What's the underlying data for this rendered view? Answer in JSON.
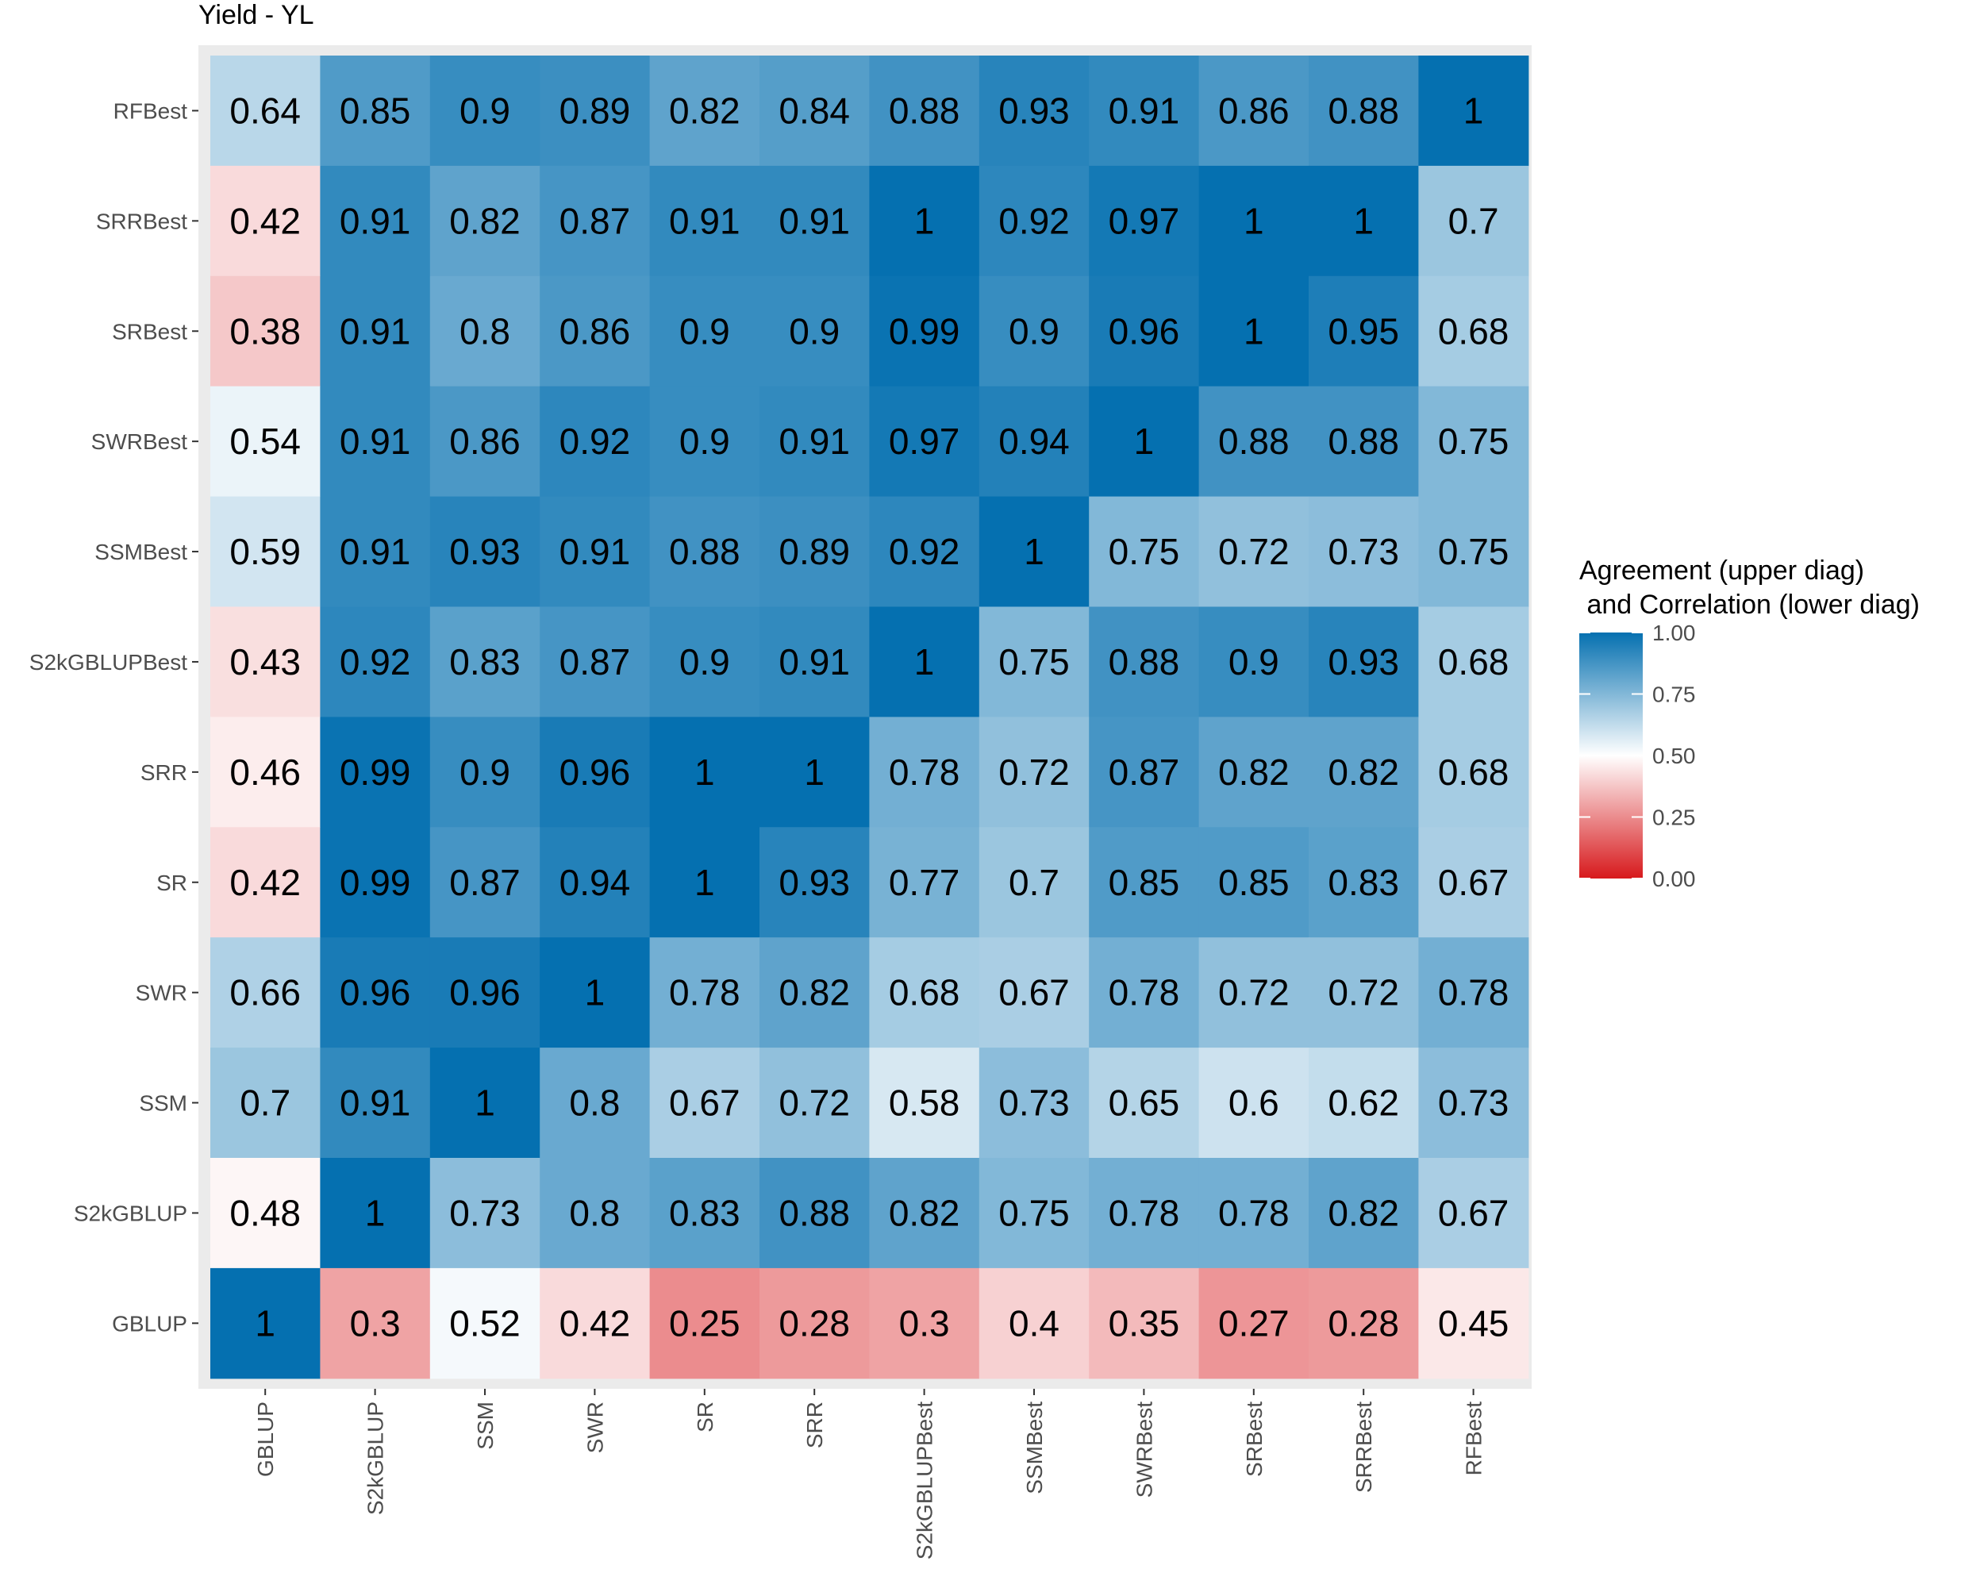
{
  "chart_data": {
    "type": "heatmap",
    "title": "Yield - YL",
    "x_categories": [
      "GBLUP",
      "S2kGBLUP",
      "SSM",
      "SWR",
      "SR",
      "SRR",
      "S2kGBLUPBest",
      "SSMBest",
      "SWRBest",
      "SRBest",
      "SRRBest",
      "RFBest"
    ],
    "y_categories_top_to_bottom": [
      "RFBest",
      "SRRBest",
      "SRBest",
      "SWRBest",
      "SSMBest",
      "S2kGBLUPBest",
      "SRR",
      "SR",
      "SWR",
      "SSM",
      "S2kGBLUP",
      "GBLUP"
    ],
    "values": [
      [
        0.64,
        0.85,
        0.9,
        0.89,
        0.82,
        0.84,
        0.88,
        0.93,
        0.91,
        0.86,
        0.88,
        1
      ],
      [
        0.42,
        0.91,
        0.82,
        0.87,
        0.91,
        0.91,
        1,
        0.92,
        0.97,
        1,
        1,
        0.7
      ],
      [
        0.38,
        0.91,
        0.8,
        0.86,
        0.9,
        0.9,
        0.99,
        0.9,
        0.96,
        1,
        0.95,
        0.68
      ],
      [
        0.54,
        0.91,
        0.86,
        0.92,
        0.9,
        0.91,
        0.97,
        0.94,
        1,
        0.88,
        0.88,
        0.75
      ],
      [
        0.59,
        0.91,
        0.93,
        0.91,
        0.88,
        0.89,
        0.92,
        1,
        0.75,
        0.72,
        0.73,
        0.75
      ],
      [
        0.43,
        0.92,
        0.83,
        0.87,
        0.9,
        0.91,
        1,
        0.75,
        0.88,
        0.9,
        0.93,
        0.68
      ],
      [
        0.46,
        0.99,
        0.9,
        0.96,
        1,
        1,
        0.78,
        0.72,
        0.87,
        0.82,
        0.82,
        0.68
      ],
      [
        0.42,
        0.99,
        0.87,
        0.94,
        1,
        0.93,
        0.77,
        0.7,
        0.85,
        0.85,
        0.83,
        0.67
      ],
      [
        0.66,
        0.96,
        0.96,
        1,
        0.78,
        0.82,
        0.68,
        0.67,
        0.78,
        0.72,
        0.72,
        0.78
      ],
      [
        0.7,
        0.91,
        1,
        0.8,
        0.67,
        0.72,
        0.58,
        0.73,
        0.65,
        0.6,
        0.62,
        0.73
      ],
      [
        0.48,
        1,
        0.73,
        0.8,
        0.83,
        0.88,
        0.82,
        0.75,
        0.78,
        0.78,
        0.82,
        0.67
      ],
      [
        1,
        0.3,
        0.52,
        0.42,
        0.25,
        0.28,
        0.3,
        0.4,
        0.35,
        0.27,
        0.28,
        0.45
      ]
    ],
    "legend": {
      "title_lines": [
        "Agreement (upper  diag)",
        " and Correlation (lower diag)"
      ],
      "ticks": [
        "1.00",
        "0.75",
        "0.50",
        "0.25",
        "0.00"
      ],
      "range": [
        0,
        1
      ],
      "placement": "right"
    },
    "color_scale": {
      "low": "#d7191c",
      "mid": "#ffffff",
      "high": "#0570b0",
      "midpoint": 0.5
    },
    "panel_background": "#ebebeb"
  }
}
